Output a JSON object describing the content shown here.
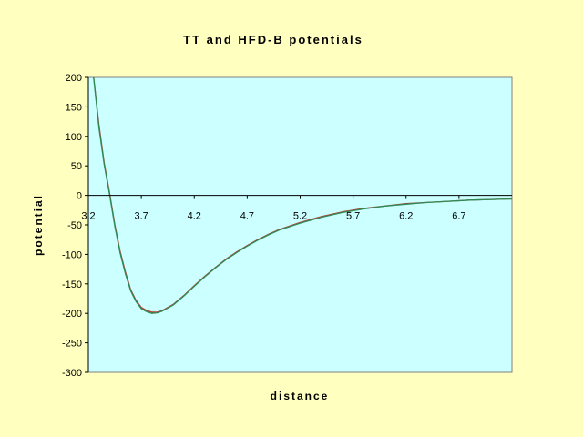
{
  "chart_data": {
    "type": "line",
    "title": "TT and HFD-B potentials",
    "xlabel": "distance",
    "ylabel": "potential",
    "xlim": [
      3.2,
      7.2
    ],
    "ylim": [
      -300,
      200
    ],
    "x_ticks": [
      "3.2",
      "3.7",
      "4.2",
      "4.7",
      "5.2",
      "5.7",
      "6.2",
      "6.7"
    ],
    "y_ticks": [
      "200",
      "150",
      "100",
      "50",
      "0",
      "-50",
      "-100",
      "-150",
      "-200",
      "-250",
      "-300"
    ],
    "grid": false,
    "legend": "none",
    "plot_background": "#ccffff",
    "series": [
      {
        "color": "#b03a2e",
        "x": [
          3.25,
          3.3,
          3.35,
          3.4,
          3.45,
          3.5,
          3.55,
          3.6,
          3.65,
          3.7,
          3.75,
          3.8,
          3.85,
          3.9,
          4.0,
          4.1,
          4.2,
          4.3,
          4.4,
          4.5,
          4.6,
          4.7,
          4.8,
          4.9,
          5.0,
          5.2,
          5.4,
          5.6,
          5.8,
          6.0,
          6.2,
          6.4,
          6.6,
          6.8,
          7.0,
          7.2
        ],
        "values": [
          200,
          120,
          55,
          5,
          -50,
          -95,
          -130,
          -160,
          -178,
          -190,
          -195,
          -198,
          -198,
          -195,
          -185,
          -170,
          -153,
          -137,
          -122,
          -108,
          -96,
          -85,
          -75,
          -66,
          -58,
          -46,
          -36,
          -28,
          -22,
          -18,
          -14,
          -12,
          -10,
          -8,
          -7,
          -6
        ]
      },
      {
        "color": "#2e8b57",
        "x": [
          3.25,
          3.3,
          3.35,
          3.4,
          3.45,
          3.5,
          3.55,
          3.6,
          3.65,
          3.7,
          3.75,
          3.8,
          3.85,
          3.9,
          4.0,
          4.1,
          4.2,
          4.3,
          4.4,
          4.5,
          4.6,
          4.7,
          4.8,
          4.9,
          5.0,
          5.2,
          5.4,
          5.6,
          5.8,
          6.0,
          6.2,
          6.4,
          6.6,
          6.8,
          7.0,
          7.2
        ],
        "values": [
          200,
          115,
          52,
          2,
          -53,
          -98,
          -133,
          -162,
          -180,
          -192,
          -197,
          -200,
          -199,
          -196,
          -186,
          -171,
          -154,
          -138,
          -123,
          -109,
          -97,
          -86,
          -76,
          -67,
          -59,
          -47,
          -37,
          -29,
          -23,
          -18,
          -15,
          -12,
          -10,
          -8,
          -7,
          -6
        ]
      }
    ]
  }
}
